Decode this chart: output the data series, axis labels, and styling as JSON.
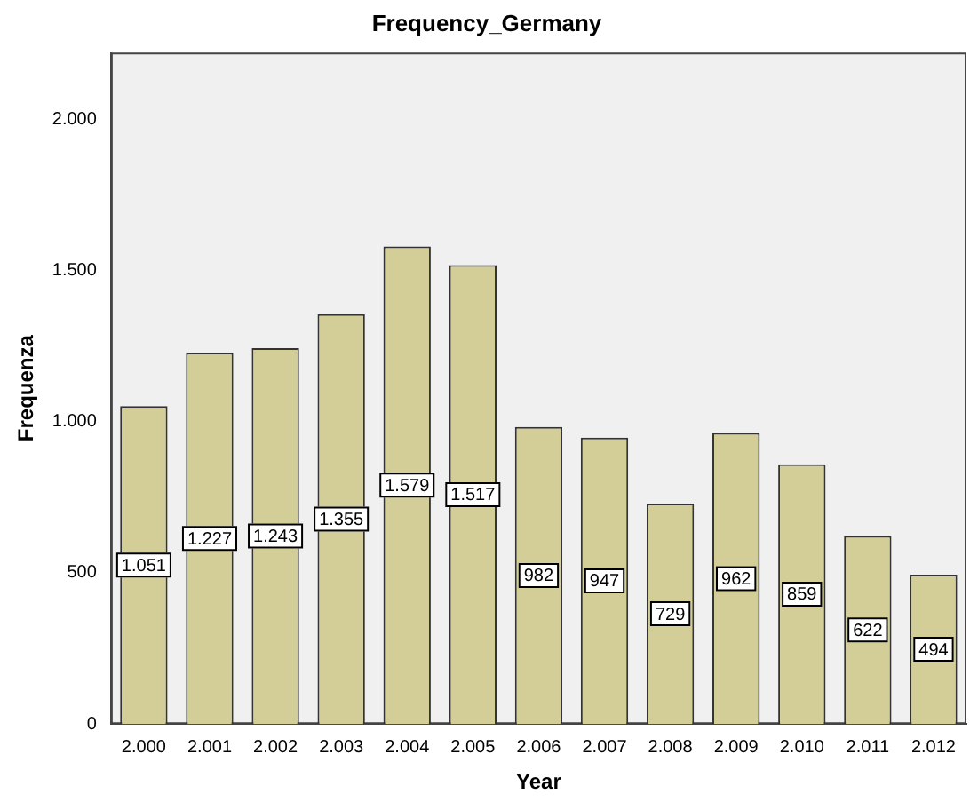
{
  "chart_data": {
    "type": "bar",
    "title": "Frequency_Germany",
    "xlabel": "Year",
    "ylabel": "Frequenza",
    "categories": [
      "2.000",
      "2.001",
      "2.002",
      "2.003",
      "2.004",
      "2.005",
      "2.006",
      "2.007",
      "2.008",
      "2.009",
      "2.010",
      "2.011",
      "2.012"
    ],
    "values": [
      1051,
      1227,
      1243,
      1355,
      1579,
      1517,
      982,
      947,
      729,
      962,
      859,
      622,
      494
    ],
    "value_labels": [
      "1.051",
      "1.227",
      "1.243",
      "1.355",
      "1.579",
      "1.517",
      "982",
      "947",
      "729",
      "962",
      "859",
      "622",
      "494"
    ],
    "color": "#d3ce98",
    "ylim": [
      0,
      2220
    ],
    "yticks": [
      0,
      500,
      {
        "value": 1000,
        "label": "1.000"
      },
      {
        "value": 1500,
        "label": "1.500"
      },
      {
        "value": 2000,
        "label": "2.000"
      }
    ],
    "grid": false,
    "legend": false
  }
}
